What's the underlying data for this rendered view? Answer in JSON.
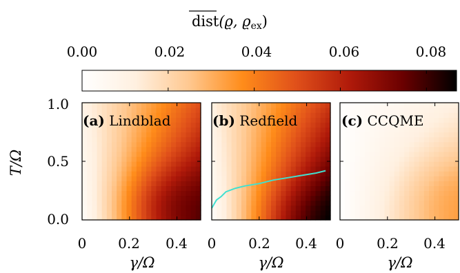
{
  "chart_data": {
    "type": "heatmap",
    "colorbar": {
      "label": "dist(ϱ, ϱex)",
      "label_parts": {
        "main": "dist",
        "paren": "(ϱ, ϱ",
        "sub": "ex",
        "close": ")"
      },
      "range": [
        0.0,
        0.087
      ],
      "ticks": [
        0.0,
        0.02,
        0.04,
        0.06,
        0.08
      ],
      "tick_labels": [
        "0.00",
        "0.02",
        "0.04",
        "0.06",
        "0.08"
      ],
      "colormap": [
        "#ffffff",
        "#fff0e0",
        "#ffc890",
        "#ff8c1a",
        "#e0501a",
        "#b01a0a",
        "#6a0000",
        "#000000"
      ]
    },
    "xlabel": "γ/Ω",
    "ylabel": "T/Ω",
    "xlim": [
      0,
      0.5
    ],
    "ylim": [
      0,
      1.0
    ],
    "xticks": [
      0,
      0.2,
      0.4
    ],
    "xtick_labels": [
      "0",
      "0.2",
      "0.4"
    ],
    "yticks": [
      0.0,
      0.5,
      1.0
    ],
    "ytick_labels": [
      "0.0",
      "0.5",
      "1.0"
    ],
    "panels": [
      {
        "tag": "(a)",
        "title": "Lindblad",
        "grid_corners": {
          "gamma0_T0": 0.002,
          "gamma_max_T0": 0.075,
          "gamma0_Tmax": 0.01,
          "gamma_max_Tmax": 0.05,
          "peak": 0.08,
          "peak_at": [
            0.44,
            0.12
          ]
        }
      },
      {
        "tag": "(b)",
        "title": "Redfield",
        "grid_corners": {
          "gamma0_T0": 0.002,
          "gamma_max_T0": 0.087,
          "gamma0_Tmax": 0.012,
          "gamma_max_Tmax": 0.055,
          "peak": 0.087,
          "peak_at": [
            0.5,
            0.0
          ]
        },
        "curve": {
          "color": "#40e0d0",
          "points": [
            [
              0.0,
              0.1
            ],
            [
              0.02,
              0.17
            ],
            [
              0.04,
              0.2
            ],
            [
              0.06,
              0.24
            ],
            [
              0.1,
              0.27
            ],
            [
              0.14,
              0.29
            ],
            [
              0.2,
              0.31
            ],
            [
              0.26,
              0.34
            ],
            [
              0.32,
              0.36
            ],
            [
              0.38,
              0.38
            ],
            [
              0.44,
              0.4
            ],
            [
              0.48,
              0.42
            ]
          ]
        }
      },
      {
        "tag": "(c)",
        "title": "CCQME",
        "grid_corners": {
          "gamma0_T0": 0.0,
          "gamma_max_T0": 0.032,
          "gamma0_Tmax": 0.001,
          "gamma_max_Tmax": 0.012,
          "peak": 0.035,
          "peak_at": [
            0.5,
            0.18
          ]
        }
      }
    ]
  }
}
